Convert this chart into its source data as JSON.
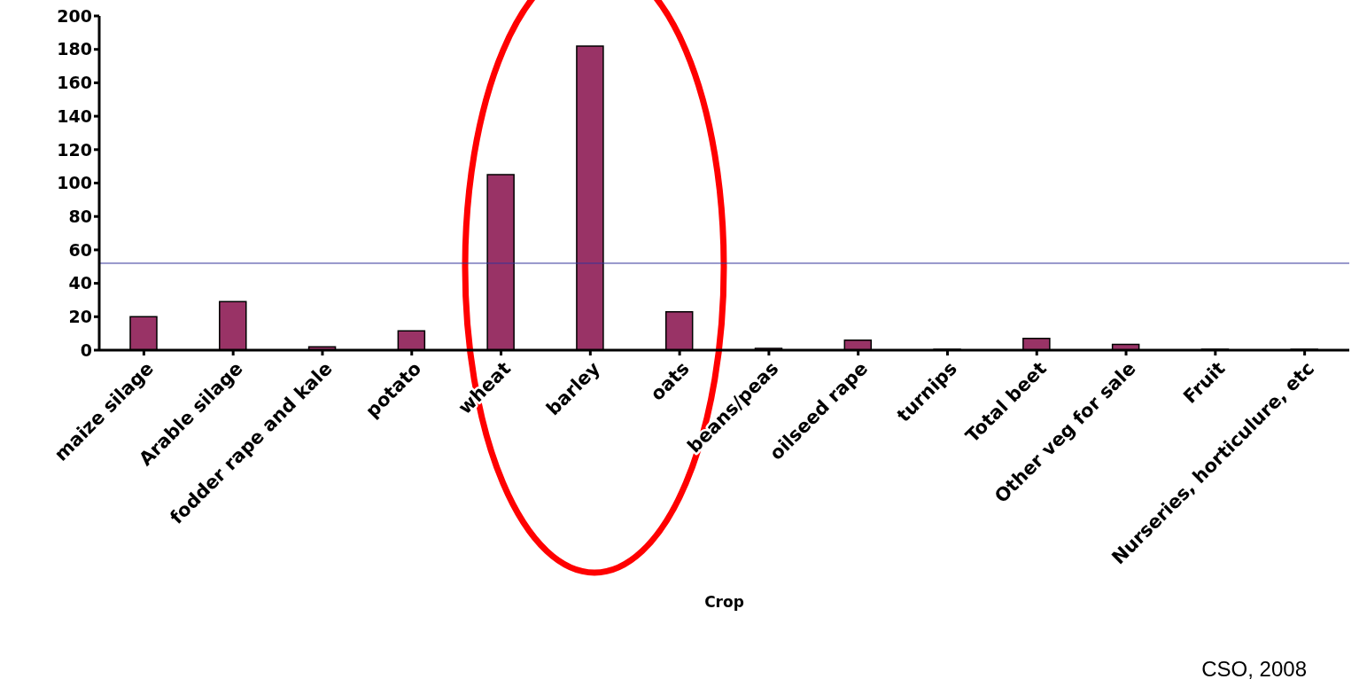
{
  "chart_data": {
    "type": "bar",
    "xlabel": "Crop",
    "categories": [
      "maize silage",
      "Arable silage",
      "fodder rape and kale",
      "potato",
      "wheat",
      "barley",
      "oats",
      "beans/peas",
      "oilseed rape",
      "turnips",
      "Total beet",
      "Other veg for sale",
      "Fruit",
      "Nurseries, horticulure, etc"
    ],
    "values": [
      20,
      29,
      2,
      11.5,
      105,
      182,
      23,
      1,
      6,
      0.5,
      7,
      3.5,
      0.5,
      0.5
    ],
    "color": "#993366",
    "ylim": [
      0,
      200
    ],
    "yticks": [
      0,
      20,
      40,
      60,
      80,
      100,
      120,
      140,
      160,
      180,
      200
    ],
    "grid": false,
    "legend": false,
    "ref_lines": [
      {
        "axis": "y",
        "value": 52,
        "color": "#333399"
      }
    ],
    "annotations": [
      "CSO, 2008"
    ]
  }
}
